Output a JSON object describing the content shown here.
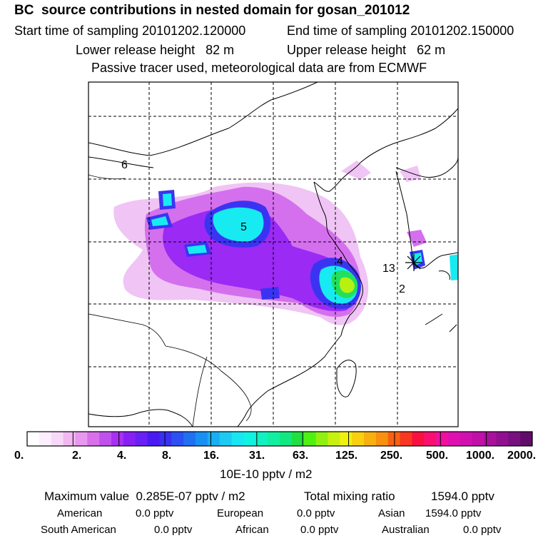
{
  "header": {
    "title": "BC  source contributions in nested domain for gosan_201012",
    "start_time": "Start time of sampling 20101202.120000",
    "end_time": "End time of sampling 20101202.150000",
    "lower_release": "Lower release height   82 m",
    "upper_release": "Upper release height   62 m",
    "tracer_note": "Passive tracer used, meteorological data are from ECMWF"
  },
  "map": {
    "region_labels": [
      "6",
      "5",
      "4",
      "13",
      "2"
    ],
    "grid": true
  },
  "colorbar": {
    "tick_labels": [
      "0.",
      "2.",
      "4.",
      "8.",
      "16.",
      "31.",
      "63.",
      "125.",
      "250.",
      "500.",
      "1000.",
      "2000."
    ],
    "unit": "10E-10 pptv / m2",
    "colors": [
      "#ffffff",
      "#fdeefd",
      "#f8d8f8",
      "#f2b8f2",
      "#e898ee",
      "#d870ea",
      "#c050ee",
      "#a830f2",
      "#8820f4",
      "#6820f4",
      "#4a1af2",
      "#3a30f2",
      "#2c50f2",
      "#2070f2",
      "#1890f2",
      "#18aef2",
      "#1ccaf2",
      "#18e6f2",
      "#10f2e2",
      "#10f2c2",
      "#10f0a0",
      "#10e880",
      "#20e040",
      "#50f010",
      "#90f010",
      "#c8f010",
      "#f0f010",
      "#f8d010",
      "#f8b010",
      "#f89010",
      "#f86010",
      "#f83820",
      "#f81040",
      "#f81070",
      "#f010a0",
      "#e010b0",
      "#d010b0",
      "#c010a8",
      "#a8109c",
      "#901090",
      "#781080",
      "#600c68"
    ]
  },
  "stats": {
    "max_label": "Maximum value  0.285E-07 pptv / m2",
    "total_label": "Total mixing ratio",
    "total_value": "1594.0 pptv",
    "rows": [
      [
        {
          "name": "American",
          "value": "0.0 pptv"
        },
        {
          "name": "European",
          "value": "0.0 pptv"
        },
        {
          "name": "Asian",
          "value": "1594.0 pptv"
        }
      ],
      [
        {
          "name": "South American",
          "value": "0.0 pptv"
        },
        {
          "name": "African",
          "value": "0.0 pptv"
        },
        {
          "name": "Australian",
          "value": "0.0 pptv"
        }
      ]
    ]
  }
}
